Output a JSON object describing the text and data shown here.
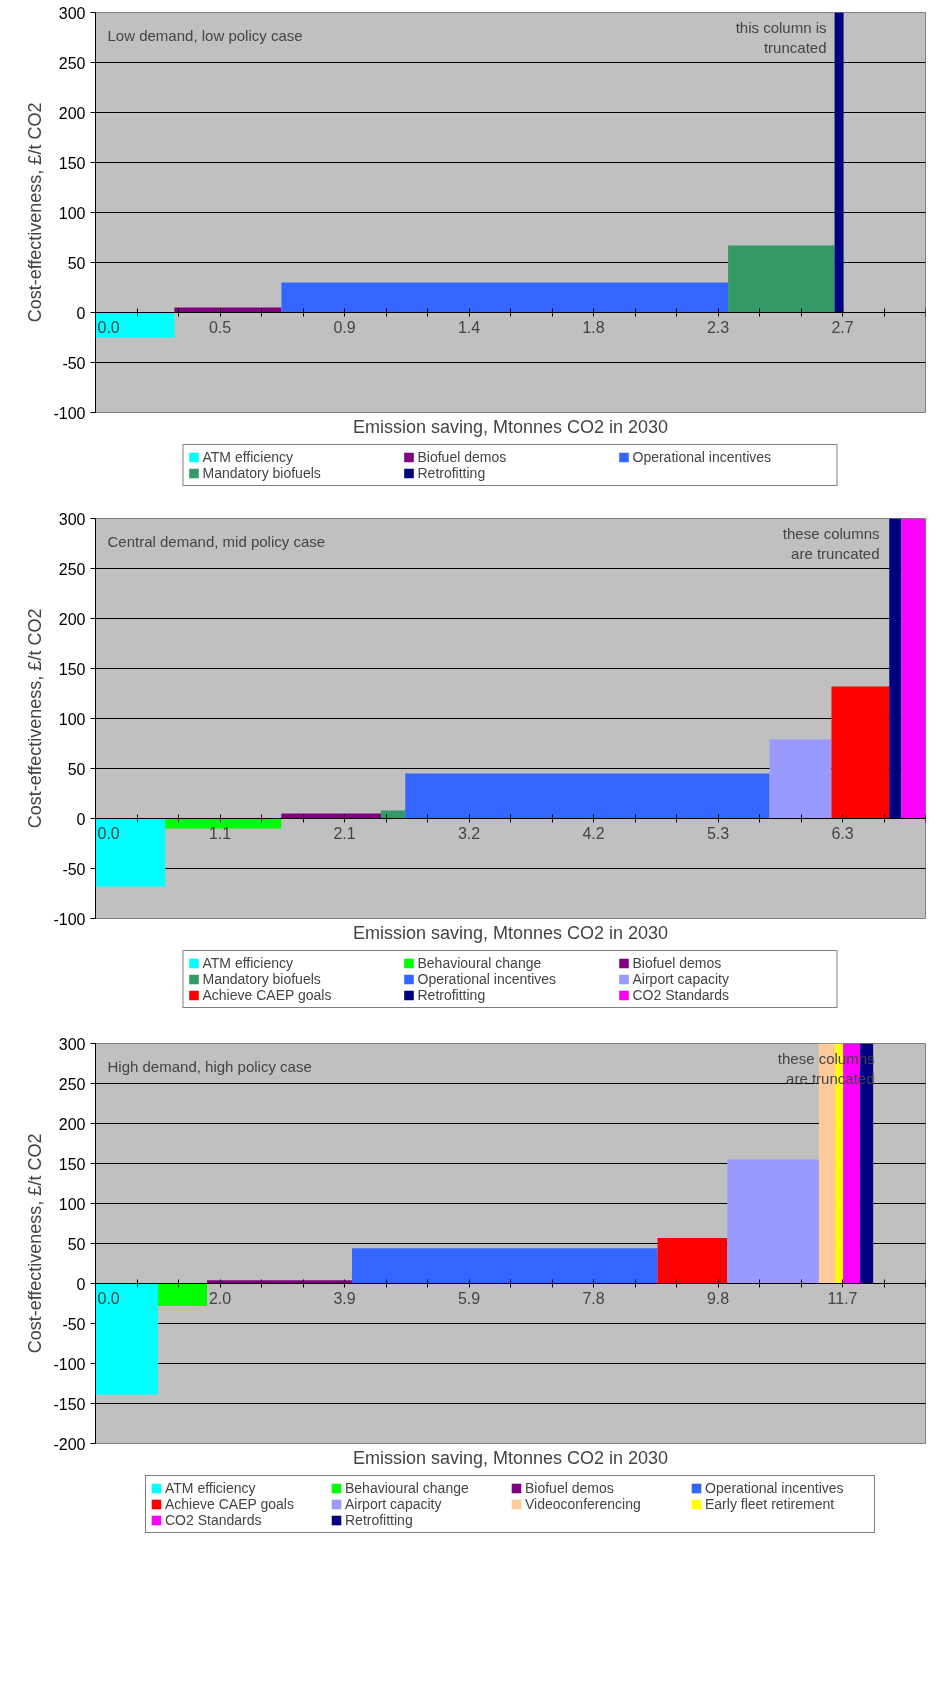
{
  "chart_data": [
    {
      "type": "bar",
      "title": "Low demand, low policy case",
      "xlabel": "Emission saving, Mtonnes CO2 in 2030",
      "ylabel": "Cost-effectiveness, £/t CO2",
      "annotations": [
        "this column is\ntruncated"
      ],
      "xlim": [
        0,
        3.04
      ],
      "ylim": [
        -100,
        300
      ],
      "yticks": [
        -100,
        -50,
        0,
        50,
        100,
        150,
        200,
        250,
        300
      ],
      "xticks": [
        {
          "value": 0,
          "label": "0.0"
        },
        {
          "value": 0.152,
          "label": null
        },
        {
          "value": 0.304,
          "label": null
        },
        {
          "value": 0.456,
          "label": "0.5"
        },
        {
          "value": 0.608,
          "label": null
        },
        {
          "value": 0.76,
          "label": null
        },
        {
          "value": 0.912,
          "label": "0.9"
        },
        {
          "value": 1.064,
          "label": null
        },
        {
          "value": 1.216,
          "label": null
        },
        {
          "value": 1.368,
          "label": "1.4"
        },
        {
          "value": 1.52,
          "label": null
        },
        {
          "value": 1.672,
          "label": null
        },
        {
          "value": 1.824,
          "label": "1.8"
        },
        {
          "value": 1.976,
          "label": null
        },
        {
          "value": 2.128,
          "label": null
        },
        {
          "value": 2.28,
          "label": "2.3"
        },
        {
          "value": 2.432,
          "label": null
        },
        {
          "value": 2.584,
          "label": null
        },
        {
          "value": 2.736,
          "label": "2.7"
        },
        {
          "value": 2.888,
          "label": null
        },
        {
          "value": 3.04,
          "label": null
        }
      ],
      "grid": "y",
      "legend": "bottom",
      "series": [
        {
          "name": "ATM efficiency",
          "color": "#00ffff",
          "x": [
            0.1445
          ],
          "values": [
            -25
          ]
        },
        {
          "name": "Biofuel demos",
          "color": "#800080",
          "x": [
            0.485
          ],
          "values": [
            5
          ]
        },
        {
          "name": "Operational incentives",
          "color": "#3366ff",
          "x": [
            1.499
          ],
          "values": [
            30
          ]
        },
        {
          "name": "Mandatory biofuels",
          "color": "#339966",
          "x": [
            2.512
          ],
          "values": [
            67
          ]
        },
        {
          "name": "Retrofitting",
          "color": "#000080",
          "x": [
            2.7235
          ],
          "values": [
            300
          ]
        }
      ]
    },
    {
      "type": "bar",
      "title": "Central demand, mid policy case",
      "xlabel": "Emission saving, Mtonnes CO2 in 2030",
      "ylabel": "Cost-effectiveness, £/t CO2",
      "annotations": [
        "these columns\nare truncated"
      ],
      "xlim": [
        0,
        7.01
      ],
      "ylim": [
        -100,
        300
      ],
      "yticks": [
        -100,
        -50,
        0,
        50,
        100,
        150,
        200,
        250,
        300
      ],
      "xticks": [
        {
          "value": 0,
          "label": "0.0"
        },
        {
          "value": 0.3505,
          "label": null
        },
        {
          "value": 0.701,
          "label": null
        },
        {
          "value": 1.0515,
          "label": "1.1"
        },
        {
          "value": 1.402,
          "label": null
        },
        {
          "value": 1.7525,
          "label": null
        },
        {
          "value": 2.103,
          "label": "2.1"
        },
        {
          "value": 2.4535,
          "label": null
        },
        {
          "value": 2.804,
          "label": null
        },
        {
          "value": 3.1545,
          "label": "3.2"
        },
        {
          "value": 3.505,
          "label": null
        },
        {
          "value": 3.8555,
          "label": null
        },
        {
          "value": 4.206,
          "label": "4.2"
        },
        {
          "value": 4.5565,
          "label": null
        },
        {
          "value": 4.907,
          "label": null
        },
        {
          "value": 5.2575,
          "label": "5.3"
        },
        {
          "value": 5.608,
          "label": null
        },
        {
          "value": 5.9585,
          "label": null
        },
        {
          "value": 6.309,
          "label": "6.3"
        },
        {
          "value": 6.6595,
          "label": null
        },
        {
          "value": 7.01,
          "label": null
        }
      ],
      "grid": "y",
      "legend": "bottom",
      "series": [
        {
          "name": "ATM efficiency",
          "color": "#00ffff",
          "x": [
            0.2945
          ],
          "values": [
            -68
          ]
        },
        {
          "name": "Behavioural change",
          "color": "#00ff00",
          "x": [
            1.079
          ],
          "values": [
            -10
          ]
        },
        {
          "name": "Biofuel demos",
          "color": "#800080",
          "x": [
            1.9905
          ],
          "values": [
            5
          ]
        },
        {
          "name": "Mandatory biofuels",
          "color": "#339966",
          "x": [
            2.514
          ],
          "values": [
            8
          ]
        },
        {
          "name": "Operational incentives",
          "color": "#3366ff",
          "x": [
            4.1545
          ],
          "values": [
            45
          ]
        },
        {
          "name": "Airport capacity",
          "color": "#9999ff",
          "x": [
            5.9545
          ],
          "values": [
            79
          ]
        },
        {
          "name": "Achieve CAEP goals",
          "color": "#ff0000",
          "x": [
            6.46
          ],
          "values": [
            132
          ]
        },
        {
          "name": "Retrofitting",
          "color": "#000080",
          "x": [
            6.755
          ],
          "values": [
            300
          ]
        },
        {
          "name": "CO2 Standards",
          "color": "#ff00ff",
          "x": [
            6.908
          ],
          "values": [
            300
          ]
        }
      ]
    },
    {
      "type": "bar",
      "title": "High demand, high policy case",
      "xlabel": "Emission saving, Mtonnes CO2 in 2030",
      "ylabel": "Cost-effectiveness, £/t CO2",
      "annotations": [
        "these columns\nare truncated"
      ],
      "xlim": [
        0,
        13.0
      ],
      "ylim": [
        -200,
        300
      ],
      "yticks": [
        -200,
        -150,
        -100,
        -50,
        0,
        50,
        100,
        150,
        200,
        250,
        300
      ],
      "xticks": [
        {
          "value": 0,
          "label": "0.0"
        },
        {
          "value": 0.65,
          "label": null
        },
        {
          "value": 1.3,
          "label": null
        },
        {
          "value": 1.95,
          "label": "2.0"
        },
        {
          "value": 2.6,
          "label": null
        },
        {
          "value": 3.25,
          "label": null
        },
        {
          "value": 3.9,
          "label": "3.9"
        },
        {
          "value": 4.55,
          "label": null
        },
        {
          "value": 5.2,
          "label": null
        },
        {
          "value": 5.85,
          "label": "5.9"
        },
        {
          "value": 6.5,
          "label": null
        },
        {
          "value": 7.15,
          "label": null
        },
        {
          "value": 7.8,
          "label": "7.8"
        },
        {
          "value": 8.45,
          "label": null
        },
        {
          "value": 9.1,
          "label": null
        },
        {
          "value": 9.75,
          "label": "9.8"
        },
        {
          "value": 10.4,
          "label": null
        },
        {
          "value": 11.05,
          "label": null
        },
        {
          "value": 11.7,
          "label": "11.7"
        },
        {
          "value": 12.35,
          "label": null
        },
        {
          "value": 13.0,
          "label": null
        }
      ],
      "grid": "y",
      "legend": "bottom",
      "series": [
        {
          "name": "ATM efficiency",
          "color": "#00ffff",
          "x": [
            0.489
          ],
          "values": [
            -139
          ]
        },
        {
          "name": "Behavioural change",
          "color": "#00ff00",
          "x": [
            1.3625
          ],
          "values": [
            -28
          ]
        },
        {
          "name": "Biofuel demos",
          "color": "#800080",
          "x": [
            2.882
          ],
          "values": [
            4
          ]
        },
        {
          "name": "Operational incentives",
          "color": "#3366ff",
          "x": [
            6.41
          ],
          "values": [
            44
          ]
        },
        {
          "name": "Achieve CAEP goals",
          "color": "#ff0000",
          "x": [
            9.3495
          ],
          "values": [
            57
          ]
        },
        {
          "name": "Airport capacity",
          "color": "#9999ff",
          "x": [
            10.613
          ],
          "values": [
            155
          ]
        },
        {
          "name": "Videoconferencing",
          "color": "#ffcc99",
          "x": [
            11.458
          ],
          "values": [
            300
          ]
        },
        {
          "name": "Early fleet retirement",
          "color": "#ffff00",
          "x": [
            11.648
          ],
          "values": [
            300
          ]
        },
        {
          "name": "CO2 Standards",
          "color": "#ff00ff",
          "x": [
            11.8425
          ],
          "values": [
            300
          ]
        },
        {
          "name": "Retrofitting",
          "color": "#000080",
          "x": [
            12.0775
          ],
          "values": [
            300
          ]
        }
      ]
    }
  ]
}
